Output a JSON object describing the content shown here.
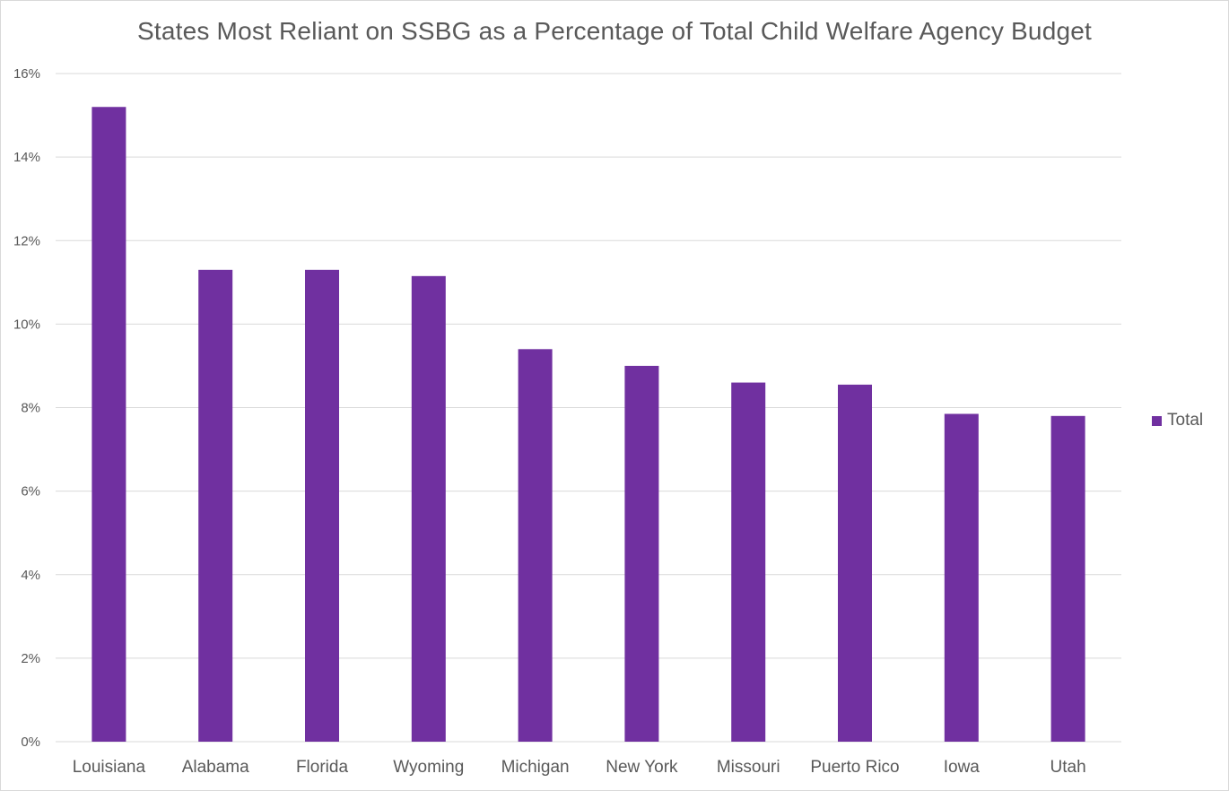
{
  "chart_data": {
    "type": "bar",
    "title": "States Most Reliant on SSBG as a Percentage of Total Child Welfare Agency Budget",
    "categories": [
      "Louisiana",
      "Alabama",
      "Florida",
      "Wyoming",
      "Michigan",
      "New York",
      "Missouri",
      "Puerto Rico",
      "Iowa",
      "Utah"
    ],
    "series": [
      {
        "name": "Total",
        "values": [
          15.2,
          11.3,
          11.3,
          11.15,
          9.4,
          9.0,
          8.6,
          8.55,
          7.85,
          7.8
        ],
        "color": "#7030a0"
      }
    ],
    "ylim": [
      0,
      16
    ],
    "yticks": [
      "0%",
      "2%",
      "4%",
      "6%",
      "8%",
      "10%",
      "12%",
      "14%",
      "16%"
    ],
    "xlabel": "",
    "ylabel": "",
    "grid": true,
    "legend_position": "right"
  }
}
